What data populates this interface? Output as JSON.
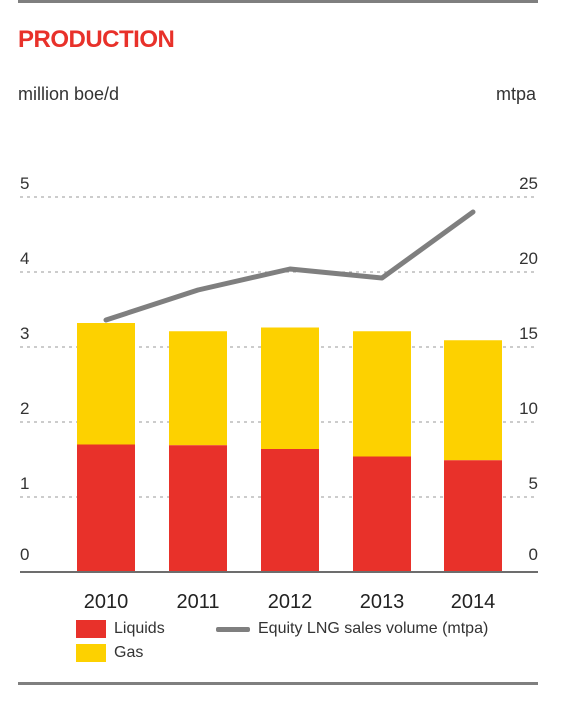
{
  "title": "PRODUCTION",
  "left_unit": "million boe/d",
  "right_unit": "mtpa",
  "legend": [
    {
      "label": "Liquids",
      "kind": "swatch",
      "color": "#e8312a"
    },
    {
      "label": "Gas",
      "kind": "swatch",
      "color": "#fdd100"
    },
    {
      "label": "Equity LNG sales volume (mtpa)",
      "kind": "line",
      "color": "#7f7f7f"
    }
  ],
  "colors": {
    "title": "#e8312a",
    "liquids": "#e8312a",
    "gas": "#fdd100",
    "line": "#7f7f7f",
    "grid": "#9a9a9a",
    "rule": "#7f7f7f"
  },
  "chart_data": {
    "type": "bar",
    "stacked": true,
    "categories": [
      "2010",
      "2011",
      "2012",
      "2013",
      "2014"
    ],
    "series": [
      {
        "name": "Liquids",
        "axis": "left",
        "values": [
          1.7,
          1.69,
          1.64,
          1.54,
          1.49
        ]
      },
      {
        "name": "Gas",
        "axis": "left",
        "values": [
          1.62,
          1.52,
          1.62,
          1.67,
          1.6
        ]
      },
      {
        "name": "Equity LNG sales volume (mtpa)",
        "type": "line",
        "axis": "right",
        "values": [
          16.8,
          18.8,
          20.2,
          19.6,
          24.0
        ]
      }
    ],
    "ylabel": "million boe/d",
    "y2label": "mtpa",
    "ylim": [
      0,
      5
    ],
    "y2lim": [
      0,
      25
    ],
    "yticks": [
      0,
      1,
      2,
      3,
      4,
      5
    ],
    "y2ticks": [
      0,
      5,
      10,
      15,
      20,
      25
    ],
    "grid": "dashed horizontal",
    "legend_position": "bottom-left"
  }
}
